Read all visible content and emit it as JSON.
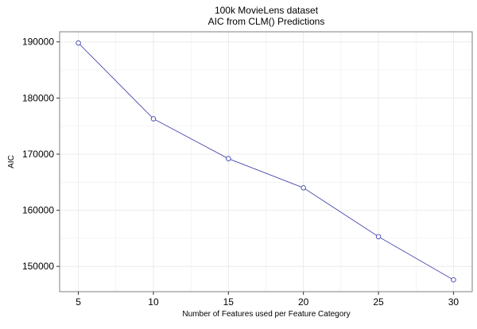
{
  "chart_data": {
    "type": "line",
    "title_lines": [
      "100k MovieLens dataset",
      "AIC from CLM() Predictions"
    ],
    "xlabel": "Number of Features used per Feature Category",
    "ylabel": "AIC",
    "x_ticks": [
      5,
      10,
      15,
      20,
      25,
      30
    ],
    "y_ticks": [
      150000,
      160000,
      170000,
      180000,
      190000
    ],
    "xlim": [
      3.75,
      31.25
    ],
    "ylim": [
      145500,
      191800
    ],
    "grid": true,
    "series": [
      {
        "x": [
          5,
          10,
          15,
          20,
          25,
          30
        ],
        "values": [
          189800,
          176300,
          169200,
          164000,
          155300,
          147600
        ]
      }
    ],
    "line_color": "#2e2ea6",
    "marker_face": "#ffffff",
    "marker_edge": "#2e2ea6",
    "grid_color": "#ebebeb",
    "panel_border_color": "#7f7f7f"
  }
}
